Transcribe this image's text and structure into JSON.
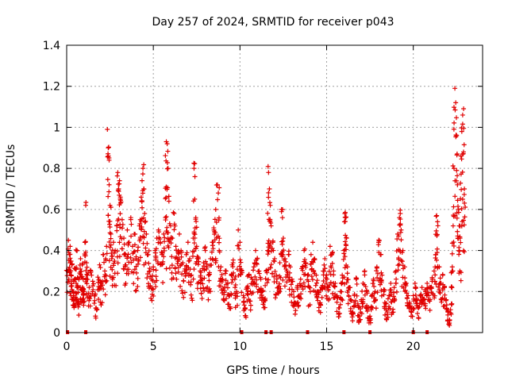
{
  "chart_data": {
    "type": "scatter",
    "title": "Day 257 of 2024, SRMTID for receiver p043",
    "xlabel": "GPS time / hours",
    "ylabel": "SRMTID / TECUs",
    "xlim": [
      0,
      24
    ],
    "ylim": [
      0,
      1.4
    ],
    "xticks": [
      0,
      5,
      10,
      15,
      20
    ],
    "yticks": [
      0,
      0.2,
      0.4,
      0.6,
      0.8,
      1.0,
      1.2,
      1.4
    ],
    "xtick_labels": [
      "0",
      "5",
      "10",
      "15",
      "20"
    ],
    "ytick_labels": [
      "0",
      "0.2",
      "0.4",
      "0.6",
      "0.8",
      "1",
      "1.2",
      "1.4"
    ],
    "grid": true,
    "marker": "plus",
    "color": "#e00000",
    "envelope_note": "dense point cloud; values listed as [hour, SRMTID]",
    "points": [
      [
        0.05,
        0.3
      ],
      [
        0.1,
        0.45
      ],
      [
        0.15,
        0.38
      ],
      [
        0.2,
        0.42
      ],
      [
        0.25,
        0.28
      ],
      [
        0.3,
        0.33
      ],
      [
        0.35,
        0.2
      ],
      [
        0.4,
        0.18
      ],
      [
        0.45,
        0.26
      ],
      [
        0.5,
        0.31
      ],
      [
        0.55,
        0.24
      ],
      [
        0.6,
        0.4
      ],
      [
        0.65,
        0.22
      ],
      [
        0.7,
        0.15
      ],
      [
        0.75,
        0.29
      ],
      [
        0.8,
        0.36
      ],
      [
        0.85,
        0.21
      ],
      [
        0.9,
        0.33
      ],
      [
        0.95,
        0.26
      ],
      [
        1.0,
        0.2
      ],
      [
        1.05,
        0.44
      ],
      [
        1.1,
        0.62
      ],
      [
        1.15,
        0.34
      ],
      [
        1.2,
        0.28
      ],
      [
        1.3,
        0.22
      ],
      [
        1.4,
        0.3
      ],
      [
        1.5,
        0.25
      ],
      [
        1.6,
        0.18
      ],
      [
        1.7,
        0.12
      ],
      [
        1.8,
        0.27
      ],
      [
        1.9,
        0.33
      ],
      [
        2.0,
        0.24
      ],
      [
        2.1,
        0.38
      ],
      [
        2.2,
        0.3
      ],
      [
        2.3,
        0.42
      ],
      [
        2.35,
        0.99
      ],
      [
        2.4,
        0.9
      ],
      [
        2.45,
        0.84
      ],
      [
        2.5,
        0.62
      ],
      [
        2.55,
        0.48
      ],
      [
        2.6,
        0.36
      ],
      [
        2.7,
        0.44
      ],
      [
        2.8,
        0.4
      ],
      [
        2.9,
        0.52
      ],
      [
        2.95,
        0.78
      ],
      [
        3.0,
        0.7
      ],
      [
        3.05,
        0.74
      ],
      [
        3.1,
        0.66
      ],
      [
        3.2,
        0.55
      ],
      [
        3.3,
        0.46
      ],
      [
        3.4,
        0.38
      ],
      [
        3.5,
        0.5
      ],
      [
        3.6,
        0.44
      ],
      [
        3.7,
        0.56
      ],
      [
        3.8,
        0.42
      ],
      [
        3.9,
        0.48
      ],
      [
        4.0,
        0.36
      ],
      [
        4.1,
        0.4
      ],
      [
        4.2,
        0.52
      ],
      [
        4.3,
        0.66
      ],
      [
        4.35,
        0.74
      ],
      [
        4.4,
        0.8
      ],
      [
        4.45,
        0.7
      ],
      [
        4.5,
        0.58
      ],
      [
        4.6,
        0.48
      ],
      [
        4.7,
        0.38
      ],
      [
        4.8,
        0.3
      ],
      [
        4.9,
        0.26
      ],
      [
        5.0,
        0.32
      ],
      [
        5.1,
        0.4
      ],
      [
        5.2,
        0.46
      ],
      [
        5.3,
        0.5
      ],
      [
        5.4,
        0.44
      ],
      [
        5.5,
        0.38
      ],
      [
        5.6,
        0.48
      ],
      [
        5.7,
        0.56
      ],
      [
        5.75,
        0.93
      ],
      [
        5.8,
        0.92
      ],
      [
        5.85,
        0.8
      ],
      [
        5.9,
        0.64
      ],
      [
        6.0,
        0.52
      ],
      [
        6.1,
        0.46
      ],
      [
        6.2,
        0.58
      ],
      [
        6.3,
        0.42
      ],
      [
        6.4,
        0.36
      ],
      [
        6.5,
        0.48
      ],
      [
        6.6,
        0.4
      ],
      [
        6.7,
        0.34
      ],
      [
        6.8,
        0.3
      ],
      [
        6.9,
        0.38
      ],
      [
        7.0,
        0.44
      ],
      [
        7.1,
        0.36
      ],
      [
        7.2,
        0.28
      ],
      [
        7.3,
        0.46
      ],
      [
        7.35,
        0.8
      ],
      [
        7.4,
        0.76
      ],
      [
        7.45,
        0.56
      ],
      [
        7.5,
        0.42
      ],
      [
        7.6,
        0.36
      ],
      [
        7.7,
        0.3
      ],
      [
        7.8,
        0.26
      ],
      [
        7.9,
        0.34
      ],
      [
        8.0,
        0.4
      ],
      [
        8.1,
        0.32
      ],
      [
        8.2,
        0.28
      ],
      [
        8.3,
        0.36
      ],
      [
        8.4,
        0.44
      ],
      [
        8.5,
        0.5
      ],
      [
        8.6,
        0.6
      ],
      [
        8.7,
        0.72
      ],
      [
        8.75,
        0.68
      ],
      [
        8.8,
        0.4
      ],
      [
        8.9,
        0.32
      ],
      [
        9.0,
        0.26
      ],
      [
        9.1,
        0.22
      ],
      [
        9.2,
        0.3
      ],
      [
        9.3,
        0.24
      ],
      [
        9.4,
        0.18
      ],
      [
        9.5,
        0.28
      ],
      [
        9.6,
        0.34
      ],
      [
        9.7,
        0.26
      ],
      [
        9.8,
        0.2
      ],
      [
        9.9,
        0.5
      ],
      [
        10.0,
        0.44
      ],
      [
        10.1,
        0.3
      ],
      [
        10.2,
        0.18
      ],
      [
        10.3,
        0.12
      ],
      [
        10.4,
        0.22
      ],
      [
        10.5,
        0.28
      ],
      [
        10.6,
        0.2
      ],
      [
        10.7,
        0.26
      ],
      [
        10.8,
        0.32
      ],
      [
        10.9,
        0.4
      ],
      [
        11.0,
        0.36
      ],
      [
        11.1,
        0.3
      ],
      [
        11.2,
        0.26
      ],
      [
        11.3,
        0.2
      ],
      [
        11.4,
        0.16
      ],
      [
        11.5,
        0.3
      ],
      [
        11.6,
        0.4
      ],
      [
        11.65,
        0.78
      ],
      [
        11.7,
        0.7
      ],
      [
        11.75,
        0.62
      ],
      [
        11.8,
        0.52
      ],
      [
        11.9,
        0.44
      ],
      [
        12.0,
        0.36
      ],
      [
        12.1,
        0.28
      ],
      [
        12.2,
        0.22
      ],
      [
        12.3,
        0.34
      ],
      [
        12.4,
        0.6
      ],
      [
        12.45,
        0.56
      ],
      [
        12.5,
        0.46
      ],
      [
        12.6,
        0.36
      ],
      [
        12.7,
        0.3
      ],
      [
        12.8,
        0.38
      ],
      [
        12.9,
        0.32
      ],
      [
        13.0,
        0.26
      ],
      [
        13.1,
        0.2
      ],
      [
        13.2,
        0.14
      ],
      [
        13.3,
        0.22
      ],
      [
        13.4,
        0.18
      ],
      [
        13.5,
        0.26
      ],
      [
        13.6,
        0.32
      ],
      [
        13.7,
        0.4
      ],
      [
        13.8,
        0.34
      ],
      [
        13.9,
        0.28
      ],
      [
        14.0,
        0.22
      ],
      [
        14.1,
        0.38
      ],
      [
        14.2,
        0.44
      ],
      [
        14.3,
        0.36
      ],
      [
        14.4,
        0.28
      ],
      [
        14.5,
        0.2
      ],
      [
        14.6,
        0.14
      ],
      [
        14.7,
        0.22
      ],
      [
        14.8,
        0.3
      ],
      [
        14.9,
        0.36
      ],
      [
        15.0,
        0.28
      ],
      [
        15.1,
        0.22
      ],
      [
        15.2,
        0.42
      ],
      [
        15.3,
        0.38
      ],
      [
        15.4,
        0.3
      ],
      [
        15.5,
        0.24
      ],
      [
        15.6,
        0.18
      ],
      [
        15.7,
        0.12
      ],
      [
        15.8,
        0.2
      ],
      [
        15.9,
        0.28
      ],
      [
        16.0,
        0.4
      ],
      [
        16.05,
        0.58
      ],
      [
        16.1,
        0.56
      ],
      [
        16.15,
        0.46
      ],
      [
        16.2,
        0.32
      ],
      [
        16.3,
        0.22
      ],
      [
        16.4,
        0.16
      ],
      [
        16.5,
        0.1
      ],
      [
        16.6,
        0.18
      ],
      [
        16.7,
        0.26
      ],
      [
        16.8,
        0.14
      ],
      [
        16.9,
        0.08
      ],
      [
        17.0,
        0.16
      ],
      [
        17.1,
        0.24
      ],
      [
        17.2,
        0.3
      ],
      [
        17.3,
        0.2
      ],
      [
        17.4,
        0.12
      ],
      [
        17.5,
        0.08
      ],
      [
        17.6,
        0.18
      ],
      [
        17.7,
        0.26
      ],
      [
        17.8,
        0.2
      ],
      [
        17.9,
        0.32
      ],
      [
        18.0,
        0.44
      ],
      [
        18.1,
        0.38
      ],
      [
        18.2,
        0.28
      ],
      [
        18.3,
        0.2
      ],
      [
        18.4,
        0.14
      ],
      [
        18.5,
        0.1
      ],
      [
        18.6,
        0.18
      ],
      [
        18.7,
        0.24
      ],
      [
        18.8,
        0.16
      ],
      [
        18.9,
        0.22
      ],
      [
        19.0,
        0.3
      ],
      [
        19.1,
        0.48
      ],
      [
        19.2,
        0.56
      ],
      [
        19.25,
        0.58
      ],
      [
        19.3,
        0.5
      ],
      [
        19.4,
        0.4
      ],
      [
        19.5,
        0.32
      ],
      [
        19.6,
        0.24
      ],
      [
        19.7,
        0.18
      ],
      [
        19.8,
        0.14
      ],
      [
        19.9,
        0.12
      ],
      [
        20.0,
        0.18
      ],
      [
        20.1,
        0.24
      ],
      [
        20.2,
        0.16
      ],
      [
        20.3,
        0.12
      ],
      [
        20.4,
        0.18
      ],
      [
        20.5,
        0.22
      ],
      [
        20.6,
        0.16
      ],
      [
        20.7,
        0.2
      ],
      [
        20.8,
        0.24
      ],
      [
        20.9,
        0.18
      ],
      [
        21.0,
        0.22
      ],
      [
        21.1,
        0.26
      ],
      [
        21.2,
        0.3
      ],
      [
        21.3,
        0.38
      ],
      [
        21.35,
        0.57
      ],
      [
        21.4,
        0.54
      ],
      [
        21.5,
        0.32
      ],
      [
        21.6,
        0.24
      ],
      [
        21.7,
        0.28
      ],
      [
        21.8,
        0.22
      ],
      [
        21.9,
        0.16
      ],
      [
        22.0,
        0.1
      ],
      [
        22.1,
        0.06
      ],
      [
        22.2,
        0.14
      ],
      [
        22.25,
        0.32
      ],
      [
        22.3,
        0.52
      ],
      [
        22.35,
        0.8
      ],
      [
        22.4,
        1.19
      ],
      [
        22.45,
        1.12
      ],
      [
        22.5,
        0.96
      ],
      [
        22.55,
        0.72
      ],
      [
        22.6,
        0.6
      ],
      [
        22.65,
        0.52
      ],
      [
        22.7,
        0.46
      ],
      [
        22.75,
        0.86
      ],
      [
        22.8,
        0.98
      ],
      [
        22.85,
        1.06
      ],
      [
        22.9,
        0.88
      ],
      [
        22.95,
        0.7
      ]
    ],
    "zero_markers": [
      0.05,
      1.1,
      10.1,
      11.5,
      11.8,
      13.9,
      16.0,
      17.5,
      20.0,
      20.8
    ]
  }
}
